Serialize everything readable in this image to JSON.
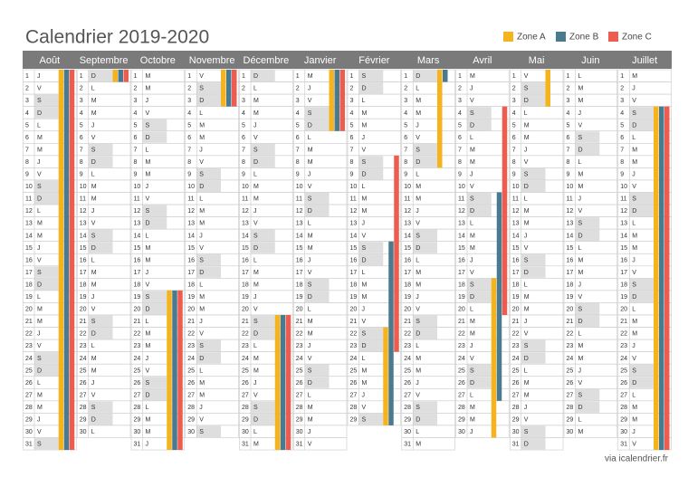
{
  "header": {
    "title": "Calendrier 2019-2020"
  },
  "legend": [
    {
      "label": "Zone A",
      "color": "#f5b31e"
    },
    {
      "label": "Zone B",
      "color": "#4a7a8f"
    },
    {
      "label": "Zone C",
      "color": "#ee5b4f"
    }
  ],
  "months": [
    {
      "name": "Août",
      "numbers": [
        1,
        2,
        3,
        4,
        5,
        6,
        7,
        8,
        9,
        10,
        11,
        12,
        13,
        14,
        15,
        16,
        17,
        18,
        19,
        20,
        21,
        22,
        23,
        24,
        25,
        26,
        27,
        28,
        29,
        30,
        31
      ],
      "weekdays": [
        "J",
        "V",
        "S",
        "D",
        "L",
        "M",
        "M",
        "J",
        "V",
        "S",
        "D",
        "L",
        "M",
        "M",
        "J",
        "V",
        "S",
        "D",
        "L",
        "M",
        "M",
        "J",
        "V",
        "S",
        "D",
        "L",
        "M",
        "M",
        "J",
        "V",
        "S"
      ]
    },
    {
      "name": "Septembre",
      "numbers": [
        1,
        2,
        3,
        4,
        5,
        6,
        7,
        8,
        9,
        10,
        11,
        12,
        13,
        14,
        15,
        16,
        17,
        18,
        19,
        20,
        21,
        22,
        23,
        24,
        25,
        26,
        27,
        28,
        29,
        30
      ],
      "weekdays": [
        "D",
        "L",
        "M",
        "M",
        "J",
        "V",
        "S",
        "D",
        "L",
        "M",
        "M",
        "J",
        "V",
        "S",
        "D",
        "L",
        "M",
        "M",
        "J",
        "V",
        "S",
        "D",
        "L",
        "M",
        "M",
        "J",
        "V",
        "S",
        "D",
        "L"
      ]
    },
    {
      "name": "Octobre",
      "numbers": [
        1,
        2,
        3,
        4,
        5,
        6,
        7,
        8,
        9,
        10,
        11,
        12,
        13,
        14,
        15,
        16,
        17,
        18,
        19,
        20,
        21,
        22,
        23,
        24,
        25,
        26,
        27,
        28,
        29,
        30,
        31
      ],
      "weekdays": [
        "M",
        "M",
        "J",
        "V",
        "S",
        "D",
        "L",
        "M",
        "M",
        "J",
        "V",
        "S",
        "D",
        "L",
        "M",
        "M",
        "J",
        "V",
        "S",
        "D",
        "L",
        "M",
        "M",
        "J",
        "V",
        "S",
        "D",
        "L",
        "M",
        "M",
        "J"
      ]
    },
    {
      "name": "Novembre",
      "numbers": [
        1,
        2,
        3,
        4,
        5,
        6,
        7,
        8,
        9,
        10,
        11,
        12,
        13,
        14,
        15,
        16,
        17,
        18,
        19,
        20,
        21,
        22,
        23,
        24,
        25,
        26,
        27,
        28,
        29,
        30
      ],
      "weekdays": [
        "V",
        "S",
        "D",
        "L",
        "M",
        "M",
        "J",
        "V",
        "S",
        "D",
        "L",
        "M",
        "M",
        "J",
        "V",
        "S",
        "D",
        "L",
        "M",
        "M",
        "J",
        "V",
        "S",
        "D",
        "L",
        "M",
        "M",
        "J",
        "V",
        "S"
      ]
    },
    {
      "name": "Décembre",
      "numbers": [
        1,
        2,
        3,
        4,
        5,
        6,
        7,
        8,
        9,
        10,
        11,
        12,
        13,
        14,
        15,
        16,
        17,
        18,
        19,
        20,
        21,
        22,
        23,
        24,
        25,
        26,
        27,
        28,
        29,
        30,
        31
      ],
      "weekdays": [
        "D",
        "L",
        "M",
        "M",
        "J",
        "V",
        "S",
        "D",
        "L",
        "M",
        "M",
        "J",
        "V",
        "S",
        "D",
        "L",
        "M",
        "M",
        "J",
        "V",
        "S",
        "D",
        "L",
        "M",
        "M",
        "J",
        "V",
        "S",
        "D",
        "L",
        "M"
      ]
    },
    {
      "name": "Janvier",
      "numbers": [
        1,
        2,
        3,
        4,
        5,
        6,
        7,
        8,
        9,
        10,
        11,
        12,
        13,
        14,
        15,
        16,
        17,
        18,
        19,
        20,
        21,
        22,
        23,
        24,
        25,
        26,
        27,
        28,
        29,
        30,
        31
      ],
      "weekdays": [
        "M",
        "J",
        "V",
        "S",
        "D",
        "L",
        "M",
        "M",
        "J",
        "V",
        "S",
        "D",
        "L",
        "M",
        "M",
        "J",
        "V",
        "S",
        "D",
        "L",
        "M",
        "M",
        "J",
        "V",
        "S",
        "D",
        "L",
        "M",
        "M",
        "J",
        "V"
      ]
    },
    {
      "name": "Février",
      "numbers": [
        1,
        2,
        3,
        4,
        5,
        6,
        7,
        8,
        9,
        10,
        11,
        12,
        13,
        14,
        15,
        16,
        17,
        18,
        19,
        20,
        21,
        22,
        23,
        24,
        25,
        26,
        27,
        28,
        29
      ],
      "weekdays": [
        "S",
        "D",
        "L",
        "M",
        "M",
        "J",
        "V",
        "S",
        "D",
        "L",
        "M",
        "M",
        "J",
        "V",
        "S",
        "D",
        "L",
        "M",
        "M",
        "J",
        "V",
        "S",
        "D",
        "L",
        "M",
        "M",
        "J",
        "V",
        "S"
      ]
    },
    {
      "name": "Mars",
      "numbers": [
        1,
        2,
        3,
        4,
        5,
        6,
        7,
        8,
        9,
        10,
        11,
        12,
        13,
        14,
        15,
        16,
        17,
        18,
        19,
        20,
        21,
        22,
        23,
        24,
        25,
        26,
        27,
        28,
        29,
        30,
        31
      ],
      "weekdays": [
        "D",
        "L",
        "M",
        "M",
        "J",
        "V",
        "S",
        "D",
        "L",
        "M",
        "M",
        "J",
        "V",
        "S",
        "D",
        "L",
        "M",
        "M",
        "J",
        "V",
        "S",
        "D",
        "L",
        "M",
        "M",
        "J",
        "V",
        "S",
        "D",
        "L",
        "M"
      ]
    },
    {
      "name": "Avril",
      "numbers": [
        1,
        2,
        3,
        4,
        5,
        6,
        7,
        8,
        9,
        10,
        11,
        12,
        13,
        14,
        15,
        16,
        17,
        18,
        19,
        20,
        21,
        22,
        23,
        24,
        25,
        26,
        27,
        28,
        29,
        30
      ],
      "weekdays": [
        "M",
        "J",
        "V",
        "S",
        "D",
        "L",
        "M",
        "M",
        "J",
        "V",
        "S",
        "D",
        "L",
        "M",
        "M",
        "J",
        "V",
        "S",
        "D",
        "L",
        "M",
        "M",
        "J",
        "V",
        "S",
        "D",
        "L",
        "M",
        "M",
        "J"
      ]
    },
    {
      "name": "Mai",
      "numbers": [
        1,
        2,
        3,
        4,
        5,
        6,
        7,
        8,
        9,
        10,
        11,
        12,
        13,
        14,
        15,
        16,
        17,
        18,
        19,
        20,
        21,
        22,
        23,
        24,
        25,
        26,
        27,
        28,
        29,
        30,
        31
      ],
      "weekdays": [
        "V",
        "S",
        "D",
        "L",
        "M",
        "M",
        "J",
        "V",
        "S",
        "D",
        "L",
        "M",
        "M",
        "J",
        "V",
        "S",
        "D",
        "L",
        "M",
        "M",
        "J",
        "V",
        "S",
        "D",
        "L",
        "M",
        "M",
        "J",
        "V",
        "S",
        "D"
      ]
    },
    {
      "name": "Juin",
      "numbers": [
        1,
        2,
        3,
        4,
        5,
        6,
        7,
        8,
        9,
        10,
        11,
        12,
        13,
        14,
        15,
        16,
        17,
        18,
        19,
        20,
        21,
        22,
        23,
        24,
        25,
        26,
        27,
        28,
        29,
        30
      ],
      "weekdays": [
        "L",
        "M",
        "M",
        "J",
        "V",
        "S",
        "D",
        "L",
        "M",
        "M",
        "J",
        "V",
        "S",
        "D",
        "L",
        "M",
        "M",
        "J",
        "V",
        "S",
        "D",
        "L",
        "M",
        "M",
        "J",
        "V",
        "S",
        "D",
        "L",
        "M"
      ]
    },
    {
      "name": "Juillet",
      "numbers": [
        1,
        2,
        3,
        4,
        5,
        6,
        7,
        8,
        9,
        10,
        11,
        12,
        13,
        14,
        15,
        16,
        17,
        18,
        19,
        20,
        21,
        22,
        23,
        24,
        25,
        26,
        27,
        28,
        29,
        30,
        31
      ],
      "weekdays": [
        "M",
        "J",
        "V",
        "S",
        "D",
        "L",
        "M",
        "M",
        "J",
        "V",
        "S",
        "D",
        "L",
        "M",
        "M",
        "J",
        "V",
        "S",
        "D",
        "L",
        "M",
        "M",
        "J",
        "V",
        "S",
        "D",
        "L",
        "M",
        "M",
        "J",
        "V"
      ]
    }
  ],
  "holidays": [
    [
      0,
      0,
      1,
      31
    ],
    [
      1,
      0,
      1,
      31
    ],
    [
      2,
      0,
      1,
      31
    ],
    [
      0,
      1,
      1,
      1
    ],
    [
      1,
      1,
      1,
      1
    ],
    [
      2,
      1,
      1,
      1
    ],
    [
      0,
      2,
      19,
      31
    ],
    [
      1,
      2,
      19,
      31
    ],
    [
      2,
      2,
      19,
      31
    ],
    [
      0,
      3,
      1,
      3
    ],
    [
      1,
      3,
      1,
      3
    ],
    [
      2,
      3,
      1,
      3
    ],
    [
      0,
      4,
      21,
      31
    ],
    [
      1,
      4,
      21,
      31
    ],
    [
      2,
      4,
      21,
      31
    ],
    [
      0,
      5,
      1,
      5
    ],
    [
      1,
      5,
      1,
      5
    ],
    [
      2,
      5,
      1,
      5
    ],
    [
      0,
      6,
      22,
      29
    ],
    [
      0,
      7,
      1,
      8
    ],
    [
      1,
      6,
      15,
      29
    ],
    [
      1,
      7,
      1,
      1
    ],
    [
      2,
      6,
      8,
      23
    ],
    [
      0,
      8,
      18,
      30
    ],
    [
      0,
      9,
      1,
      3
    ],
    [
      1,
      8,
      11,
      27
    ],
    [
      2,
      8,
      4,
      20
    ],
    [
      0,
      11,
      4,
      31
    ],
    [
      1,
      11,
      4,
      31
    ],
    [
      2,
      11,
      4,
      31
    ]
  ],
  "footer": "via icalendrier.fr"
}
